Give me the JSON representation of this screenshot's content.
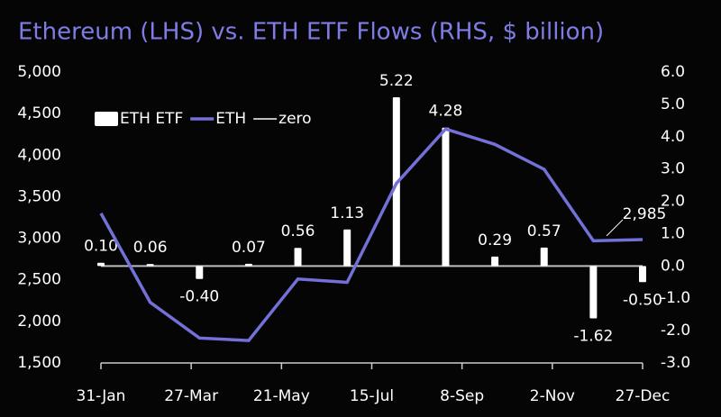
{
  "chart_data": {
    "type": "bar_line",
    "title": "Ethereum (LHS) vs. ETH ETF Flows (RHS, $ billion)",
    "x": [
      0,
      1,
      2,
      3,
      4,
      5,
      6,
      7,
      8,
      9,
      10,
      11
    ],
    "xlim": [
      0,
      11
    ],
    "xticks": [
      {
        "value": 0,
        "label": "31-Jan"
      },
      {
        "value": 1.833,
        "label": "27-Mar"
      },
      {
        "value": 3.667,
        "label": "21-May"
      },
      {
        "value": 5.5,
        "label": "15-Jul"
      },
      {
        "value": 7.333,
        "label": "8-Sep"
      },
      {
        "value": 9.167,
        "label": "2-Nov"
      },
      {
        "value": 11,
        "label": "27-Dec"
      }
    ],
    "ylim": [
      1500,
      5000
    ],
    "yticks": [
      {
        "value": 1500,
        "label": "1,500"
      },
      {
        "value": 2000,
        "label": "2,000"
      },
      {
        "value": 2500,
        "label": "2,500"
      },
      {
        "value": 3000,
        "label": "3,000"
      },
      {
        "value": 3500,
        "label": "3,500"
      },
      {
        "value": 4000,
        "label": "4,000"
      },
      {
        "value": 4500,
        "label": "4,500"
      },
      {
        "value": 5000,
        "label": "5,000"
      }
    ],
    "y2lim": [
      -3,
      6
    ],
    "y2ticks": [
      {
        "value": -3,
        "label": "-3.0"
      },
      {
        "value": -2,
        "label": "-2.0"
      },
      {
        "value": -1,
        "label": "-1.0"
      },
      {
        "value": 0,
        "label": "0.0"
      },
      {
        "value": 1,
        "label": "1.0"
      },
      {
        "value": 2,
        "label": "2.0"
      },
      {
        "value": 3,
        "label": "3.0"
      },
      {
        "value": 4,
        "label": "4.0"
      },
      {
        "value": 5,
        "label": "5.0"
      },
      {
        "value": 6,
        "label": "6.0"
      }
    ],
    "legend": "upper left",
    "series": [
      {
        "name": "ETH ETF",
        "type": "bar",
        "axis": "y2",
        "color": "#ffffff",
        "values": [
          0.1,
          0.06,
          -0.4,
          0.07,
          0.56,
          1.13,
          5.22,
          4.28,
          0.29,
          0.57,
          -1.62,
          -0.5
        ],
        "value_labels": [
          "0.10",
          "0.06",
          "-0.40",
          "0.07",
          "0.56",
          "1.13",
          "5.22",
          "4.28",
          "0.29",
          "0.57",
          "-1.62",
          "-0.50"
        ]
      },
      {
        "name": "ETH",
        "type": "line",
        "axis": "y",
        "color": "#7370d8",
        "values": [
          3300,
          2230,
          1800,
          1770,
          2510,
          2470,
          3660,
          4315,
          4130,
          3830,
          2970,
          2985
        ],
        "value_labels": [
          null,
          null,
          null,
          null,
          null,
          null,
          null,
          null,
          null,
          null,
          null,
          "2,985"
        ]
      },
      {
        "name": "zero",
        "type": "line",
        "axis": "y2",
        "color": "#bdbdbd",
        "values": [
          0,
          0,
          0,
          0,
          0,
          0,
          0,
          0,
          0,
          0,
          0,
          0
        ]
      }
    ]
  }
}
